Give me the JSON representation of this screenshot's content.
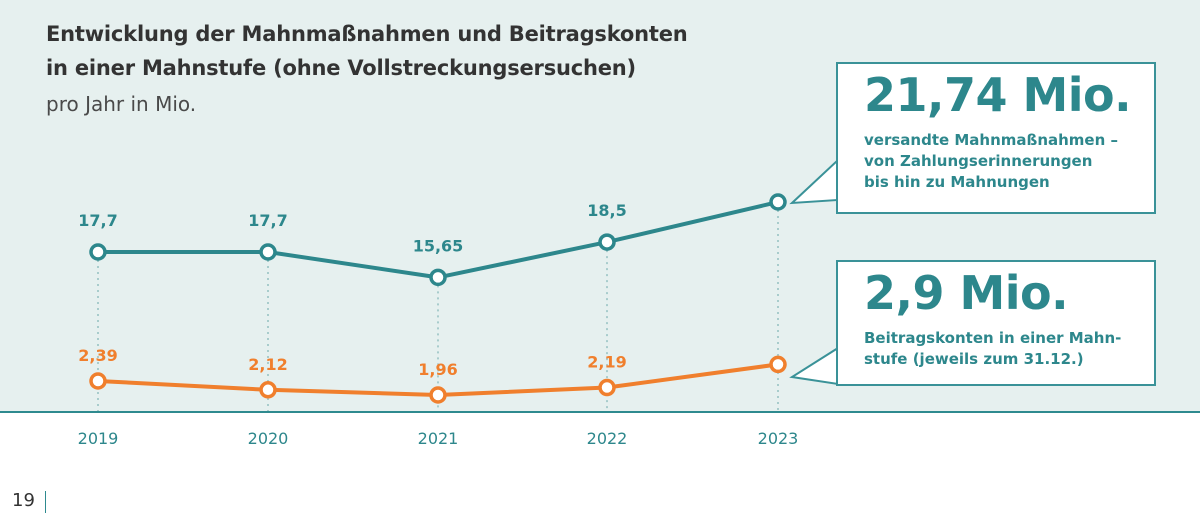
{
  "title_line1": "Entwicklung der Mahnmaßnahmen und Beitragskonten",
  "title_line2": "in einer Mahnstufe (ohne Vollstreckungsersuchen)",
  "subtitle": "pro Jahr in Mio.",
  "colors": {
    "teal": "#2d878c",
    "orange": "#f07f2d",
    "panel_background": "#e6f0ef"
  },
  "chart_data": {
    "type": "line",
    "title": "Entwicklung der Mahnmaßnahmen und Beitragskonten in einer Mahnstufe (ohne Vollstreckungsersuchen)",
    "ylabel": "pro Jahr in Mio.",
    "categories": [
      "2019",
      "2020",
      "2021",
      "2022",
      "2023"
    ],
    "series": [
      {
        "name": "versandte Mahnmaßnahmen",
        "values": [
          17.7,
          17.7,
          15.65,
          18.5,
          21.74
        ],
        "labels": [
          "17,7",
          "17,7",
          "15,65",
          "18,5",
          ""
        ],
        "color": "#2d878c"
      },
      {
        "name": "Beitragskonten in einer Mahnstufe",
        "values": [
          2.39,
          2.12,
          1.96,
          2.19,
          2.9
        ],
        "labels": [
          "2,39",
          "2,12",
          "1,96",
          "2,19",
          ""
        ],
        "color": "#f07f2d"
      }
    ]
  },
  "callouts": {
    "top": {
      "value": "21,74 Mio.",
      "lines": [
        "versandte Mahnmaßnahmen –",
        "von Zahlungserinnerungen",
        "bis hin zu Mahnungen"
      ]
    },
    "bottom": {
      "value": "2,9 Mio.",
      "lines": [
        "Beitragskonten in einer Mahn-",
        "stufe (jeweils zum 31.12.)"
      ]
    }
  },
  "page_number": "19"
}
